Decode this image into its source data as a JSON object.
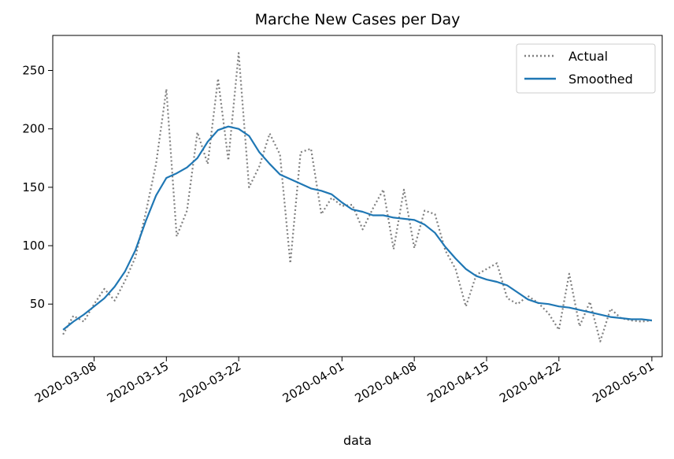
{
  "chart_data": {
    "type": "line",
    "title": "Marche New Cases per Day",
    "xlabel": "data",
    "ylabel": "",
    "x_axis_type": "date",
    "xlim": [
      "2020-03-04",
      "2020-05-02"
    ],
    "ylim": [
      5,
      280
    ],
    "x_ticks": [
      "2020-03-08",
      "2020-03-15",
      "2020-03-22",
      "2020-04-01",
      "2020-04-08",
      "2020-04-15",
      "2020-04-22",
      "2020-05-01"
    ],
    "y_ticks": [
      50,
      100,
      150,
      200,
      250
    ],
    "grid": false,
    "legend_position": "top-right",
    "x": [
      "2020-03-05",
      "2020-03-06",
      "2020-03-07",
      "2020-03-08",
      "2020-03-09",
      "2020-03-10",
      "2020-03-11",
      "2020-03-12",
      "2020-03-13",
      "2020-03-14",
      "2020-03-15",
      "2020-03-16",
      "2020-03-17",
      "2020-03-18",
      "2020-03-19",
      "2020-03-20",
      "2020-03-21",
      "2020-03-22",
      "2020-03-23",
      "2020-03-24",
      "2020-03-25",
      "2020-03-26",
      "2020-03-27",
      "2020-03-28",
      "2020-03-29",
      "2020-03-30",
      "2020-03-31",
      "2020-04-01",
      "2020-04-02",
      "2020-04-03",
      "2020-04-04",
      "2020-04-05",
      "2020-04-06",
      "2020-04-07",
      "2020-04-08",
      "2020-04-09",
      "2020-04-10",
      "2020-04-11",
      "2020-04-12",
      "2020-04-13",
      "2020-04-14",
      "2020-04-15",
      "2020-04-16",
      "2020-04-17",
      "2020-04-18",
      "2020-04-19",
      "2020-04-20",
      "2020-04-21",
      "2020-04-22",
      "2020-04-23",
      "2020-04-24",
      "2020-04-25",
      "2020-04-26",
      "2020-04-27",
      "2020-04-28",
      "2020-04-29",
      "2020-04-30",
      "2020-05-01"
    ],
    "series": [
      {
        "name": "Actual",
        "color": "#808080",
        "style": "dotted",
        "values": [
          24,
          40,
          35,
          50,
          63,
          53,
          70,
          90,
          128,
          170,
          234,
          108,
          130,
          197,
          170,
          243,
          173,
          265,
          150,
          168,
          196,
          178,
          85,
          180,
          183,
          127,
          141,
          134,
          135,
          114,
          132,
          148,
          97,
          148,
          98,
          130,
          127,
          96,
          80,
          48,
          75,
          80,
          85,
          55,
          50,
          57,
          51,
          42,
          28,
          76,
          31,
          52,
          18,
          46,
          38,
          36,
          35,
          36
        ]
      },
      {
        "name": "Smoothed",
        "color": "#1f77b4",
        "style": "solid",
        "values": [
          28,
          35,
          41,
          48,
          55,
          65,
          78,
          96,
          121,
          143,
          158,
          162,
          167,
          175,
          189,
          199,
          202,
          200,
          194,
          180,
          170,
          161,
          157,
          153,
          149,
          147,
          144,
          137,
          131,
          129,
          126,
          126,
          124,
          123,
          122,
          118,
          111,
          99,
          89,
          80,
          74,
          71,
          69,
          66,
          60,
          54,
          51,
          50,
          48,
          47,
          45,
          43,
          41,
          39,
          38,
          37,
          37,
          36
        ]
      }
    ]
  }
}
